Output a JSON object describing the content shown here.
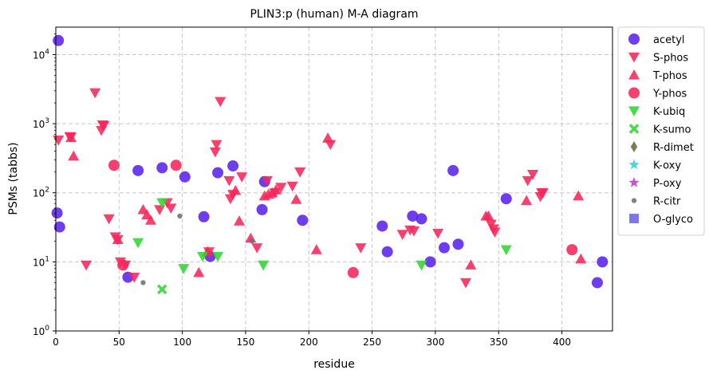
{
  "chart_data": {
    "type": "scatter",
    "title": "PLIN3:p (human) M-A diagram",
    "xlabel": "residue",
    "ylabel": "PSMs (tabbs)",
    "xlim": [
      0,
      440
    ],
    "ylim": [
      1,
      25000
    ],
    "yscale": "log",
    "grid": true,
    "legend_position": "outside-right",
    "x_ticks": [
      0,
      50,
      100,
      150,
      200,
      250,
      300,
      350,
      400
    ],
    "y_ticks": [
      {
        "value": 1,
        "base": "10",
        "exp": "0"
      },
      {
        "value": 10,
        "base": "10",
        "exp": "1"
      },
      {
        "value": 100,
        "base": "10",
        "exp": "2"
      },
      {
        "value": 1000,
        "base": "10",
        "exp": "3"
      },
      {
        "value": 10000,
        "base": "10",
        "exp": "4"
      }
    ],
    "series": [
      {
        "name": "acetyl",
        "marker": "circle",
        "color": "#5a22ee",
        "points": [
          [
            2,
            16000
          ],
          [
            1,
            51
          ],
          [
            3,
            32
          ],
          [
            57,
            6
          ],
          [
            65,
            210
          ],
          [
            84,
            230
          ],
          [
            102,
            170
          ],
          [
            117,
            45
          ],
          [
            122,
            12
          ],
          [
            128,
            195
          ],
          [
            140,
            245
          ],
          [
            163,
            57
          ],
          [
            165,
            145
          ],
          [
            195,
            40
          ],
          [
            258,
            33
          ],
          [
            262,
            14
          ],
          [
            282,
            46
          ],
          [
            289,
            42
          ],
          [
            296,
            10
          ],
          [
            307,
            16
          ],
          [
            314,
            210
          ],
          [
            318,
            18
          ],
          [
            356,
            82
          ],
          [
            428,
            5
          ],
          [
            432,
            10
          ]
        ]
      },
      {
        "name": "S-phos",
        "marker": "triangle-down",
        "color": "#f7255b",
        "points": [
          [
            2,
            580
          ],
          [
            11,
            650
          ],
          [
            12,
            640
          ],
          [
            24,
            9
          ],
          [
            31,
            2800
          ],
          [
            36,
            800
          ],
          [
            37,
            960
          ],
          [
            38,
            940
          ],
          [
            42,
            42
          ],
          [
            47,
            23
          ],
          [
            49,
            21
          ],
          [
            51,
            10
          ],
          [
            55,
            9
          ],
          [
            62,
            6
          ],
          [
            82,
            57
          ],
          [
            88,
            72
          ],
          [
            91,
            60
          ],
          [
            121,
            14
          ],
          [
            126,
            390
          ],
          [
            127,
            500
          ],
          [
            130,
            2100
          ],
          [
            137,
            150
          ],
          [
            138,
            82
          ],
          [
            140,
            95
          ],
          [
            147,
            170
          ],
          [
            159,
            16
          ],
          [
            167,
            150
          ],
          [
            173,
            100
          ],
          [
            178,
            120
          ],
          [
            187,
            125
          ],
          [
            193,
            200
          ],
          [
            217,
            500
          ],
          [
            241,
            16
          ],
          [
            274,
            25
          ],
          [
            280,
            29
          ],
          [
            283,
            28
          ],
          [
            302,
            26
          ],
          [
            324,
            5
          ],
          [
            344,
            35
          ],
          [
            346,
            30
          ],
          [
            347,
            27
          ],
          [
            373,
            150
          ],
          [
            377,
            185
          ],
          [
            383,
            88
          ],
          [
            384,
            100
          ],
          [
            385,
            100
          ]
        ]
      },
      {
        "name": "T-phos",
        "marker": "triangle-up",
        "color": "#f7255b",
        "points": [
          [
            12,
            630
          ],
          [
            14,
            340
          ],
          [
            49,
            21
          ],
          [
            69,
            57
          ],
          [
            72,
            48
          ],
          [
            75,
            40
          ],
          [
            113,
            7
          ],
          [
            120,
            14
          ],
          [
            142,
            108
          ],
          [
            145,
            39
          ],
          [
            154,
            22
          ],
          [
            165,
            90
          ],
          [
            168,
            95
          ],
          [
            171,
            100
          ],
          [
            174,
            110
          ],
          [
            190,
            80
          ],
          [
            206,
            15
          ],
          [
            215,
            620
          ],
          [
            328,
            9
          ],
          [
            340,
            46
          ],
          [
            342,
            46
          ],
          [
            372,
            77
          ],
          [
            413,
            90
          ],
          [
            415,
            11
          ]
        ]
      },
      {
        "name": "Y-phos",
        "marker": "circle",
        "color": "#f7255b",
        "points": [
          [
            46,
            250
          ],
          [
            53,
            9
          ],
          [
            95,
            250
          ],
          [
            235,
            7
          ],
          [
            408,
            15
          ]
        ]
      },
      {
        "name": "K-ubiq",
        "marker": "triangle-down",
        "color": "#2ed633",
        "points": [
          [
            65,
            19
          ],
          [
            84,
            72
          ],
          [
            101,
            8
          ],
          [
            116,
            12
          ],
          [
            128,
            12
          ],
          [
            164,
            9
          ],
          [
            289,
            9
          ],
          [
            356,
            15
          ]
        ]
      },
      {
        "name": "K-sumo",
        "marker": "x",
        "color": "#2ed633",
        "points": [
          [
            84,
            4
          ]
        ]
      },
      {
        "name": "R-dimet",
        "marker": "diamond",
        "color": "#6b6b3c",
        "points": []
      },
      {
        "name": "K-oxy",
        "marker": "star",
        "color": "#35d0d0",
        "points": []
      },
      {
        "name": "P-oxy",
        "marker": "star",
        "color": "#c33ad1",
        "points": []
      },
      {
        "name": "R-citr",
        "marker": "dot",
        "color": "#707070",
        "points": [
          [
            69,
            5
          ],
          [
            98,
            46
          ],
          [
            155,
            20
          ]
        ]
      },
      {
        "name": "O-glyco",
        "marker": "square",
        "color": "#6a62e8",
        "points": []
      }
    ]
  }
}
